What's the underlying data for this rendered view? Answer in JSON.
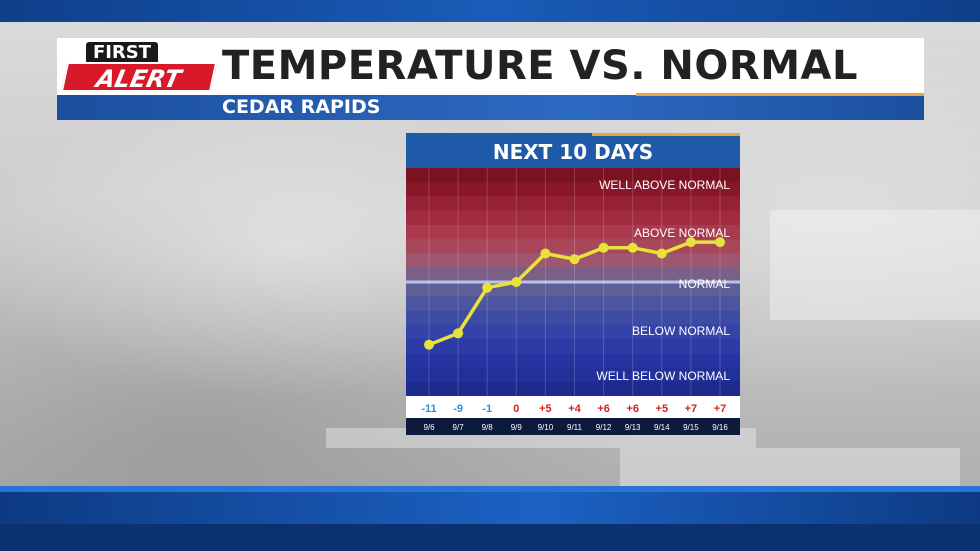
{
  "header": {
    "logo_top": "FIRST",
    "logo_bottom": "ALERT",
    "title": "TEMPERATURE VS. NORMAL",
    "subtitle": "CEDAR RAPIDS"
  },
  "colors": {
    "brand_red": "#d7192a",
    "header_blue": "#1c4f9e",
    "accent_orange": "#e8a838",
    "line_yellow": "#e8e23a",
    "anomaly_blue": "#2f8fd8",
    "anomaly_red": "#d42020"
  },
  "chart_data": {
    "type": "line",
    "title": "NEXT 10 DAYS",
    "categories": [
      "9/6",
      "9/7",
      "9/8",
      "9/9",
      "9/10",
      "9/11",
      "9/12",
      "9/13",
      "9/14",
      "9/15",
      "9/16"
    ],
    "series": [
      {
        "values": [
          -11,
          -9,
          -1,
          0,
          5,
          4,
          6,
          6,
          5,
          7,
          7
        ]
      }
    ],
    "value_labels": [
      "-11",
      "-9",
      "-1",
      "0",
      "+5",
      "+4",
      "+6",
      "+6",
      "+5",
      "+7",
      "+7"
    ],
    "bands": [
      "WELL ABOVE NORMAL",
      "ABOVE NORMAL",
      "NORMAL",
      "BELOW NORMAL",
      "WELL BELOW NORMAL"
    ],
    "ylim": [
      -20,
      20
    ],
    "grid": true,
    "legend": "none"
  }
}
